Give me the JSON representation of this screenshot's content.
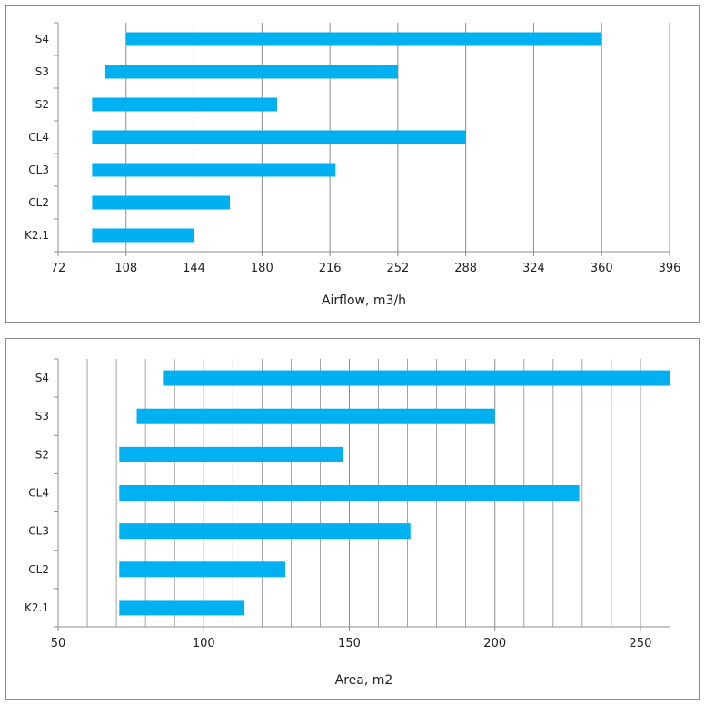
{
  "colors": {
    "bar": "#00b0f0",
    "grid": "#8c8c8c",
    "axis": "#8c8c8c",
    "border": "#8c8c8c"
  },
  "chart_data": [
    {
      "type": "bar",
      "orientation": "horizontal",
      "categories": [
        "S4",
        "S3",
        "S2",
        "CL4",
        "CL3",
        "CL2",
        "K2.1"
      ],
      "series": [
        {
          "starts": [
            108,
            97,
            90,
            90,
            90,
            90,
            90
          ],
          "ends": [
            360,
            252,
            188,
            288,
            219,
            163,
            144
          ]
        }
      ],
      "xlabel": "Airflow, m3/h",
      "xlim": [
        72,
        396
      ],
      "xticks": [
        72,
        108,
        144,
        180,
        216,
        252,
        288,
        324,
        360,
        396
      ],
      "grid": true
    },
    {
      "type": "bar",
      "orientation": "horizontal",
      "categories": [
        "S4",
        "S3",
        "S2",
        "CL4",
        "CL3",
        "CL2",
        "K2.1"
      ],
      "series": [
        {
          "starts": [
            86,
            77,
            71,
            71,
            71,
            71,
            71
          ],
          "ends": [
            260,
            200,
            148,
            229,
            171,
            128,
            114
          ]
        }
      ],
      "xlabel": "Area, m2",
      "xlim": [
        50,
        260
      ],
      "xticks": [
        50,
        100,
        150,
        200,
        250
      ],
      "minor_grid_step": 10,
      "grid": true
    }
  ]
}
